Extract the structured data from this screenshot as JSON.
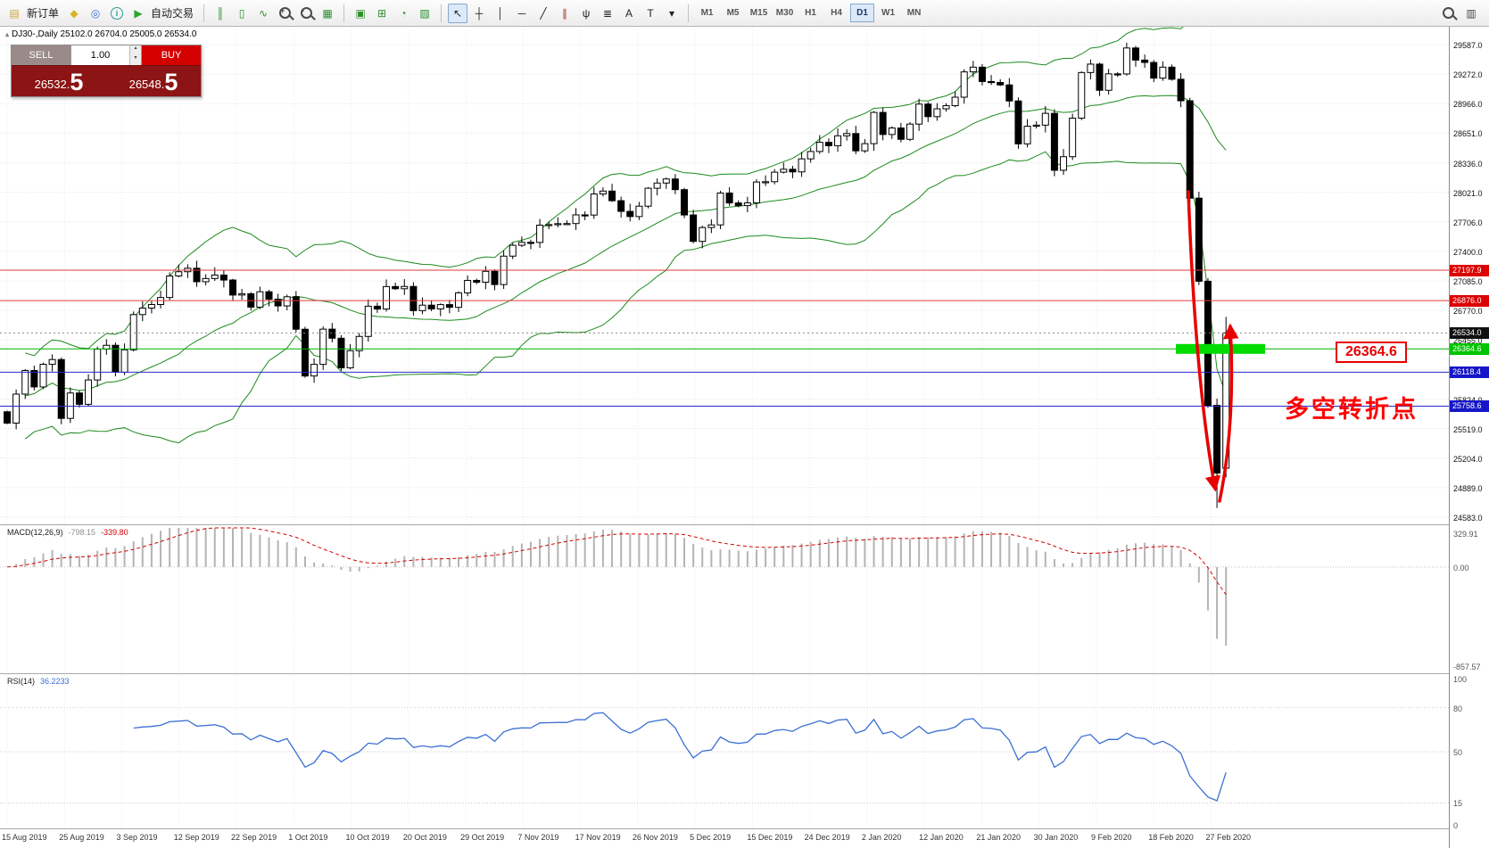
{
  "toolbar": {
    "icon_groups": [
      [
        {
          "name": "new-order-button",
          "glyph": "▤",
          "color": "#caa23c",
          "label": "新订单"
        },
        {
          "name": "charts-icon",
          "glyph": "◆",
          "color": "#d8b525"
        },
        {
          "name": "navigator-icon",
          "glyph": "◎",
          "color": "#3e6fd0"
        },
        {
          "name": "info-icon",
          "glyph": "i",
          "color": "#2b9b9b",
          "circle": true
        },
        {
          "name": "auto-trading-button",
          "glyph": "▶",
          "color": "#2fa32f",
          "label": "自动交易"
        }
      ],
      [
        {
          "name": "bar-chart-type-icon",
          "glyph": "║",
          "color": "#2c8f2c"
        },
        {
          "name": "candlestick-chart-type-icon",
          "glyph": "▯",
          "color": "#2c8f2c"
        },
        {
          "name": "line-chart-type-icon",
          "glyph": "∿",
          "color": "#2c8f2c"
        },
        {
          "name": "zoom-in-icon",
          "mag": "+"
        },
        {
          "name": "zoom-out-icon",
          "mag": "-"
        },
        {
          "name": "tile-windows-icon",
          "glyph": "▦",
          "color": "#2c8f2c"
        }
      ],
      [
        {
          "name": "arrange-charts-icon",
          "glyph": "▣",
          "color": "#2c8f2c"
        },
        {
          "name": "indicators-button",
          "glyph": "⊞",
          "color": "#2c8f2c"
        },
        {
          "name": "periods-button",
          "glyph": "◔",
          "color": "#2c8f2c"
        },
        {
          "name": "templates-button",
          "glyph": "▨",
          "color": "#2c8f2c"
        }
      ],
      [
        {
          "name": "cursor-tool",
          "glyph": "↖",
          "color": "#222",
          "active": true
        },
        {
          "name": "crosshair-tool",
          "glyph": "┼",
          "color": "#222"
        },
        {
          "name": "vertical-line-tool",
          "glyph": "│",
          "color": "#222"
        },
        {
          "name": "horizontal-line-tool",
          "glyph": "─",
          "color": "#222"
        },
        {
          "name": "trendline-tool",
          "glyph": "╱",
          "color": "#222"
        },
        {
          "name": "channel-tool",
          "glyph": "∥",
          "color": "#aa3333"
        },
        {
          "name": "pitchfork-tool",
          "glyph": "ψ",
          "color": "#222"
        },
        {
          "name": "fibonacci-tool",
          "glyph": "≣",
          "color": "#222"
        },
        {
          "name": "text-tool",
          "glyph": "A",
          "color": "#222"
        },
        {
          "name": "label-tool",
          "glyph": "T",
          "color": "#222"
        },
        {
          "name": "shapes-tool",
          "glyph": "▾",
          "color": "#222"
        }
      ]
    ],
    "timeframes": [
      "M1",
      "M5",
      "M15",
      "M30",
      "H1",
      "H4",
      "D1",
      "W1",
      "MN"
    ],
    "active_timeframe": "D1",
    "right_icons": [
      {
        "name": "search-icon",
        "mag": ""
      },
      {
        "name": "layouts-icon",
        "glyph": "▥",
        "color": "#444"
      }
    ]
  },
  "ui_icons": {
    "collapse": "▴",
    "spin_up": "▴",
    "spin_down": "▾"
  },
  "symbol_info": {
    "text": "DJ30-,Daily  25102.0 26704.0 25005.0 26534.0"
  },
  "trade_panel": {
    "sell_label": "SELL",
    "buy_label": "BUY",
    "volume": "1.00",
    "sell_price": {
      "main": "26532.",
      "big": "5"
    },
    "buy_price": {
      "main": "26548.",
      "big": "5"
    }
  },
  "price_axis": {
    "labels": [
      "29587.0",
      "29272.0",
      "28966.0",
      "28651.0",
      "28336.0",
      "28021.0",
      "27706.0",
      "27400.0",
      "27085.0",
      "26770.0",
      "26455.0",
      "26140.0",
      "25824.0",
      "25519.0",
      "25204.0",
      "24889.0",
      "24583.0"
    ],
    "markers": [
      {
        "name": "resistance-1",
        "text": "27197.9",
        "price": 27197.9,
        "bg": "#dc0000"
      },
      {
        "name": "resistance-2",
        "text": "26876.0",
        "price": 26876.0,
        "bg": "#dc0000"
      },
      {
        "name": "current-price",
        "text": "26534.0",
        "price": 26534.0,
        "bg": "#111111"
      },
      {
        "name": "support-green",
        "text": "26364.6",
        "price": 26364.6,
        "bg": "#00c400"
      },
      {
        "name": "support-blue-1",
        "text": "26118.4",
        "price": 26118.4,
        "bg": "#1616c8"
      },
      {
        "name": "support-blue-2",
        "text": "25758.6",
        "price": 25758.6,
        "bg": "#1616c8"
      }
    ]
  },
  "macd": {
    "label": "MACD(12,26,9)",
    "main_value": "-798.15",
    "signal_value": "-339.80",
    "axis_labels": [
      "329.91",
      "0.00",
      "-857.57"
    ],
    "range_max": 329.91,
    "range_min": -857.57
  },
  "rsi": {
    "label": "RSI(14)",
    "value": "36.2233",
    "axis_labels": [
      "100",
      "80",
      "50",
      "15",
      "0"
    ],
    "levels": [
      80,
      50,
      15
    ]
  },
  "date_axis": {
    "labels": [
      "15 Aug 2019",
      "25 Aug 2019",
      "3 Sep 2019",
      "12 Sep 2019",
      "22 Sep 2019",
      "1 Oct 2019",
      "10 Oct 2019",
      "20 Oct 2019",
      "29 Oct 2019",
      "7 Nov 2019",
      "17 Nov 2019",
      "26 Nov 2019",
      "5 Dec 2019",
      "15 Dec 2019",
      "24 Dec 2019",
      "2 Jan 2020",
      "12 Jan 2020",
      "21 Jan 2020",
      "30 Jan 2020",
      "9 Feb 2020",
      "18 Feb 2020",
      "27 Feb 2020"
    ]
  },
  "annotations": {
    "price_callout": "26364.6",
    "turning_point": "多空转折点",
    "highlight_price": 26364.6,
    "highlight_color": "#00dc00",
    "arrow_color": "#e80000"
  },
  "chart_data": {
    "type": "candlestick",
    "symbol": "DJ30-",
    "period": "Daily",
    "ohlc_current": {
      "open": 25102.0,
      "high": 26704.0,
      "low": 25005.0,
      "close": 26534.0
    },
    "prev_bar_low": 24681,
    "price_range": [
      24583.0,
      29587.0
    ],
    "indicators": [
      "Bollinger Bands(20,2)",
      "MACD(12,26,9)",
      "RSI(14)"
    ],
    "closes": [
      25579,
      25886,
      26136,
      25962,
      26202,
      26252,
      25629,
      25898,
      25778,
      26036,
      26362,
      26403,
      26118,
      26355,
      26728,
      26797,
      26835,
      26909,
      27137,
      27182,
      27219,
      27076,
      27110,
      27147,
      27094,
      26935,
      26949,
      26807,
      26970,
      26891,
      26820,
      26917,
      26573,
      26078,
      26201,
      26574,
      26478,
      26164,
      26346,
      26497,
      26817,
      26787,
      27025,
      27002,
      27026,
      26770,
      26828,
      26788,
      26834,
      26805,
      26958,
      27090,
      27071,
      27186,
      27046,
      27347,
      27462,
      27493,
      27492,
      27675,
      27681,
      27691,
      27692,
      27784,
      27782,
      28005,
      28036,
      27934,
      27821,
      27766,
      27876,
      28066,
      28121,
      28164,
      28051,
      27783,
      27503,
      27650,
      27678,
      28015,
      27910,
      27882,
      27911,
      28132,
      28135,
      28236,
      28267,
      28239,
      28377,
      28455,
      28552,
      28516,
      28621,
      28645,
      28462,
      28538,
      28869,
      28635,
      28704,
      28584,
      28745,
      28957,
      28824,
      28907,
      28940,
      29030,
      29298,
      29348,
      29196,
      29186,
      29160,
      28990,
      28536,
      28723,
      28734,
      28859,
      28256,
      28400,
      28808,
      29291,
      29380,
      29103,
      29277,
      29276,
      29551,
      29423,
      29398,
      29232,
      29348,
      29220,
      28992,
      27961,
      27081,
      25767,
      25050,
      26534
    ],
    "lines": [
      {
        "name": "hline-27197.9",
        "price": 27197.9,
        "color": "#e23b3b",
        "style": "solid"
      },
      {
        "name": "hline-26876.0",
        "price": 26876.0,
        "color": "#e23b3b",
        "style": "solid"
      },
      {
        "name": "current-price-line",
        "price": 26534.0,
        "color": "#8a8a8a",
        "style": "dotted"
      },
      {
        "name": "hline-26364.6",
        "price": 26364.6,
        "color": "#00b000",
        "style": "solid"
      },
      {
        "name": "hline-26118.4",
        "price": 26118.4,
        "color": "#2828cc",
        "style": "solid"
      },
      {
        "name": "hline-25758.6",
        "price": 25758.6,
        "color": "#2828cc",
        "style": "solid"
      }
    ]
  }
}
